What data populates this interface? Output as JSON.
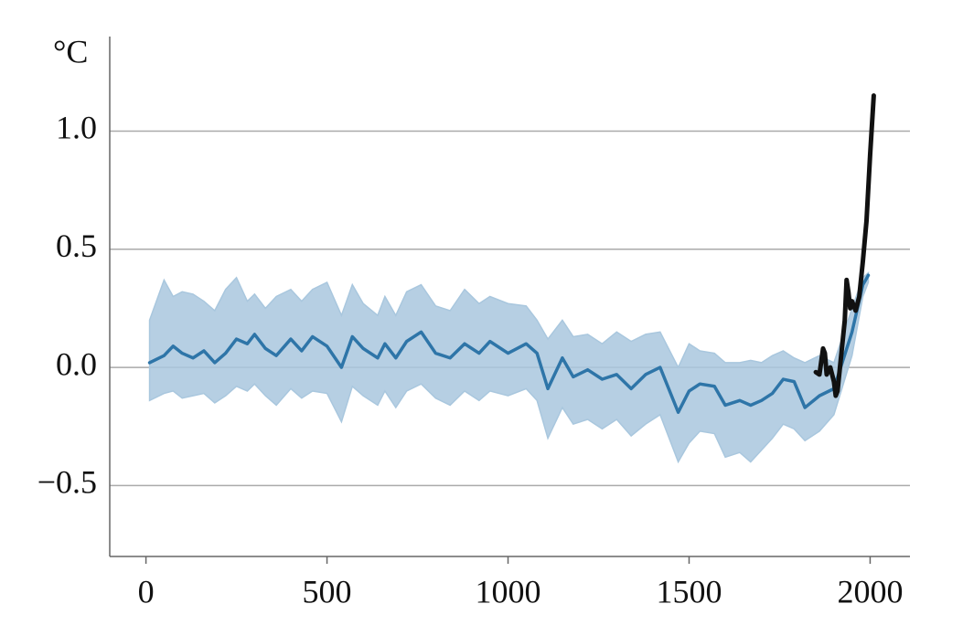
{
  "chart_data": {
    "type": "line",
    "ylabel": "°C",
    "xlim": [
      -100,
      2110
    ],
    "xticks": [
      0,
      500,
      1000,
      1500,
      2000
    ],
    "ylim": [
      -0.8,
      1.4
    ],
    "yticks": [
      {
        "value": -0.5,
        "label": "−0.5"
      },
      {
        "value": 0,
        "label": "0.0"
      },
      0.5,
      {
        "value": 1,
        "label": "1.0"
      }
    ],
    "grid": true,
    "x": [
      10,
      50,
      75,
      100,
      130,
      160,
      190,
      220,
      250,
      280,
      300,
      330,
      360,
      400,
      430,
      460,
      500,
      540,
      570,
      600,
      640,
      660,
      690,
      720,
      760,
      800,
      840,
      880,
      920,
      950,
      1000,
      1050,
      1080,
      1110,
      1150,
      1180,
      1220,
      1260,
      1300,
      1340,
      1380,
      1420,
      1470,
      1500,
      1530,
      1570,
      1600,
      1640,
      1670,
      1700,
      1730,
      1760,
      1790,
      1820,
      1860,
      1900,
      1950,
      1980,
      1995
    ],
    "band": {
      "color": "#a9c7de",
      "upper": [
        0.2,
        0.37,
        0.3,
        0.32,
        0.31,
        0.28,
        0.24,
        0.33,
        0.38,
        0.28,
        0.31,
        0.25,
        0.3,
        0.33,
        0.28,
        0.33,
        0.36,
        0.22,
        0.35,
        0.27,
        0.22,
        0.3,
        0.22,
        0.32,
        0.35,
        0.26,
        0.24,
        0.33,
        0.27,
        0.3,
        0.27,
        0.26,
        0.2,
        0.12,
        0.2,
        0.13,
        0.14,
        0.1,
        0.15,
        0.11,
        0.14,
        0.15,
        0.0,
        0.1,
        0.07,
        0.06,
        0.02,
        0.02,
        0.03,
        0.02,
        0.05,
        0.07,
        0.04,
        0.02,
        0.05,
        0.02,
        0.25,
        0.38,
        0.4
      ],
      "lower": [
        -0.14,
        -0.11,
        -0.1,
        -0.13,
        -0.12,
        -0.11,
        -0.15,
        -0.12,
        -0.08,
        -0.1,
        -0.07,
        -0.12,
        -0.16,
        -0.09,
        -0.13,
        -0.1,
        -0.11,
        -0.23,
        -0.08,
        -0.12,
        -0.16,
        -0.1,
        -0.17,
        -0.1,
        -0.07,
        -0.13,
        -0.16,
        -0.1,
        -0.14,
        -0.1,
        -0.12,
        -0.09,
        -0.14,
        -0.3,
        -0.17,
        -0.24,
        -0.22,
        -0.26,
        -0.22,
        -0.29,
        -0.24,
        -0.2,
        -0.4,
        -0.32,
        -0.27,
        -0.28,
        -0.38,
        -0.36,
        -0.4,
        -0.35,
        -0.3,
        -0.24,
        -0.26,
        -0.31,
        -0.27,
        -0.2,
        0.05,
        0.3,
        0.36
      ]
    },
    "series": [
      {
        "color": "#2e75a8",
        "values": [
          0.02,
          0.05,
          0.09,
          0.06,
          0.04,
          0.07,
          0.02,
          0.06,
          0.12,
          0.1,
          0.14,
          0.08,
          0.05,
          0.12,
          0.07,
          0.13,
          0.09,
          0.0,
          0.13,
          0.08,
          0.04,
          0.1,
          0.04,
          0.11,
          0.15,
          0.06,
          0.04,
          0.1,
          0.06,
          0.11,
          0.06,
          0.1,
          0.06,
          -0.09,
          0.04,
          -0.04,
          -0.01,
          -0.05,
          -0.03,
          -0.09,
          -0.03,
          0.0,
          -0.19,
          -0.1,
          -0.07,
          -0.08,
          -0.16,
          -0.14,
          -0.16,
          -0.14,
          -0.11,
          -0.05,
          -0.06,
          -0.17,
          -0.12,
          -0.09,
          0.15,
          0.35,
          0.39
        ]
      },
      {
        "color": "#111111",
        "x": [
          1850,
          1860,
          1870,
          1875,
          1880,
          1890,
          1900,
          1905,
          1910,
          1920,
          1930,
          1935,
          1940,
          1945,
          1950,
          1960,
          1970,
          1980,
          1990,
          2000,
          2010
        ],
        "values": [
          -0.02,
          -0.03,
          0.08,
          0.06,
          -0.03,
          0.0,
          -0.06,
          -0.12,
          -0.1,
          0.05,
          0.2,
          0.37,
          0.32,
          0.25,
          0.28,
          0.24,
          0.3,
          0.45,
          0.62,
          0.9,
          1.15
        ]
      }
    ]
  }
}
